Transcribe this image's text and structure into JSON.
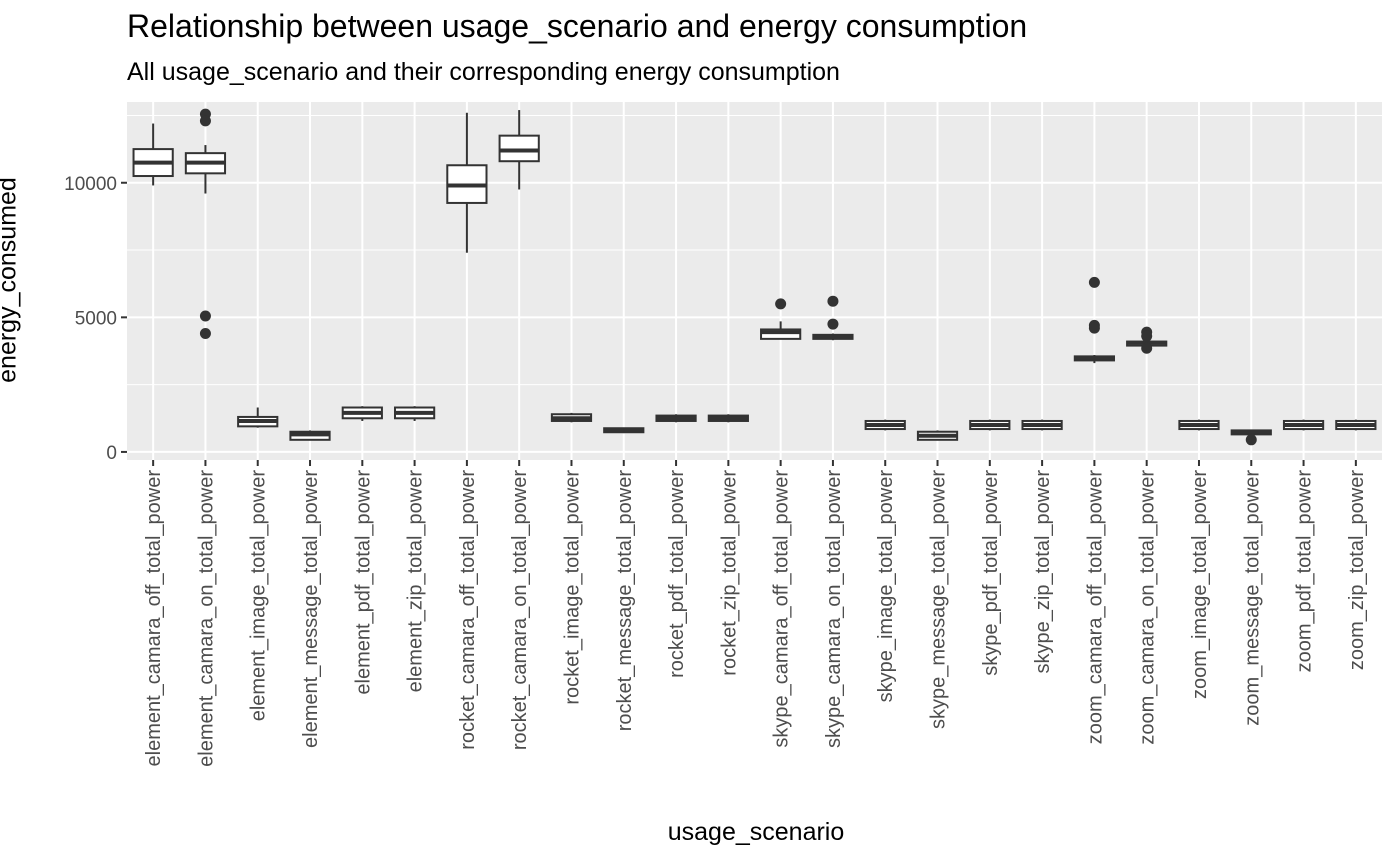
{
  "chart_data": {
    "type": "boxplot",
    "title": "Relationship between usage_scenario and energy consumption",
    "subtitle": "All usage_scenario and their corresponding energy consumption",
    "xlabel": "usage_scenario",
    "ylabel": "energy_consumed",
    "ylim": [
      -300,
      13000
    ],
    "yticks": [
      0,
      5000,
      10000
    ],
    "ytick_labels": [
      "0",
      "5000",
      "10000"
    ],
    "grid": true,
    "legend": "none",
    "colors": {
      "panel": "#ebebeb",
      "grid": "#ffffff",
      "box_fill": "#ffffff",
      "box_line": "#333333",
      "text": "#4d4d4d"
    },
    "categories": [
      "element_camara_off_total_power",
      "element_camara_on_total_power",
      "element_image_total_power",
      "element_message_total_power",
      "element_pdf_total_power",
      "element_zip_total_power",
      "rocket_camara_off_total_power",
      "rocket_camara_on_total_power",
      "rocket_image_total_power",
      "rocket_message_total_power",
      "rocket_pdf_total_power",
      "rocket_zip_total_power",
      "skype_camara_off_total_power",
      "skype_camara_on_total_power",
      "skype_image_total_power",
      "skype_message_total_power",
      "skype_pdf_total_power",
      "skype_zip_total_power",
      "zoom_camara_off_total_power",
      "zoom_camara_on_total_power",
      "zoom_image_total_power",
      "zoom_message_total_power",
      "zoom_pdf_total_power",
      "zoom_zip_total_power"
    ],
    "boxes": [
      {
        "min": 9900,
        "q1": 10250,
        "median": 10750,
        "q3": 11250,
        "max": 12200,
        "outliers": []
      },
      {
        "min": 9600,
        "q1": 10350,
        "median": 10750,
        "q3": 11100,
        "max": 11400,
        "outliers": [
          12550,
          12300,
          5050,
          4400
        ]
      },
      {
        "min": 900,
        "q1": 950,
        "median": 1150,
        "q3": 1300,
        "max": 1650,
        "outliers": []
      },
      {
        "min": 450,
        "q1": 450,
        "median": 650,
        "q3": 750,
        "max": 800,
        "outliers": []
      },
      {
        "min": 1150,
        "q1": 1250,
        "median": 1450,
        "q3": 1650,
        "max": 1700,
        "outliers": []
      },
      {
        "min": 1150,
        "q1": 1250,
        "median": 1450,
        "q3": 1650,
        "max": 1700,
        "outliers": []
      },
      {
        "min": 7400,
        "q1": 9250,
        "median": 9900,
        "q3": 10650,
        "max": 12600,
        "outliers": []
      },
      {
        "min": 9750,
        "q1": 10800,
        "median": 11200,
        "q3": 11750,
        "max": 12700,
        "outliers": []
      },
      {
        "min": 1100,
        "q1": 1150,
        "median": 1250,
        "q3": 1400,
        "max": 1450,
        "outliers": []
      },
      {
        "min": 700,
        "q1": 750,
        "median": 820,
        "q3": 880,
        "max": 900,
        "outliers": []
      },
      {
        "min": 1100,
        "q1": 1150,
        "median": 1250,
        "q3": 1350,
        "max": 1400,
        "outliers": []
      },
      {
        "min": 1100,
        "q1": 1150,
        "median": 1250,
        "q3": 1350,
        "max": 1400,
        "outliers": []
      },
      {
        "min": 4200,
        "q1": 4200,
        "median": 4450,
        "q3": 4550,
        "max": 4850,
        "outliers": [
          5500
        ]
      },
      {
        "min": 4150,
        "q1": 4200,
        "median": 4250,
        "q3": 4350,
        "max": 4400,
        "outliers": [
          5600,
          4750
        ]
      },
      {
        "min": 800,
        "q1": 850,
        "median": 1000,
        "q3": 1150,
        "max": 1200,
        "outliers": []
      },
      {
        "min": 450,
        "q1": 450,
        "median": 600,
        "q3": 750,
        "max": 800,
        "outliers": []
      },
      {
        "min": 800,
        "q1": 850,
        "median": 1000,
        "q3": 1150,
        "max": 1200,
        "outliers": []
      },
      {
        "min": 800,
        "q1": 850,
        "median": 1000,
        "q3": 1150,
        "max": 1200,
        "outliers": []
      },
      {
        "min": 3300,
        "q1": 3400,
        "median": 3500,
        "q3": 3550,
        "max": 3600,
        "outliers": [
          6300,
          4700,
          4600
        ]
      },
      {
        "min": 3900,
        "q1": 3950,
        "median": 4050,
        "q3": 4100,
        "max": 4200,
        "outliers": [
          4450,
          4300,
          3850
        ]
      },
      {
        "min": 800,
        "q1": 850,
        "median": 1000,
        "q3": 1150,
        "max": 1200,
        "outliers": []
      },
      {
        "min": 650,
        "q1": 700,
        "median": 750,
        "q3": 800,
        "max": 820,
        "outliers": [
          450
        ]
      },
      {
        "min": 800,
        "q1": 850,
        "median": 1000,
        "q3": 1150,
        "max": 1200,
        "outliers": []
      },
      {
        "min": 800,
        "q1": 850,
        "median": 1000,
        "q3": 1150,
        "max": 1200,
        "outliers": []
      }
    ]
  }
}
